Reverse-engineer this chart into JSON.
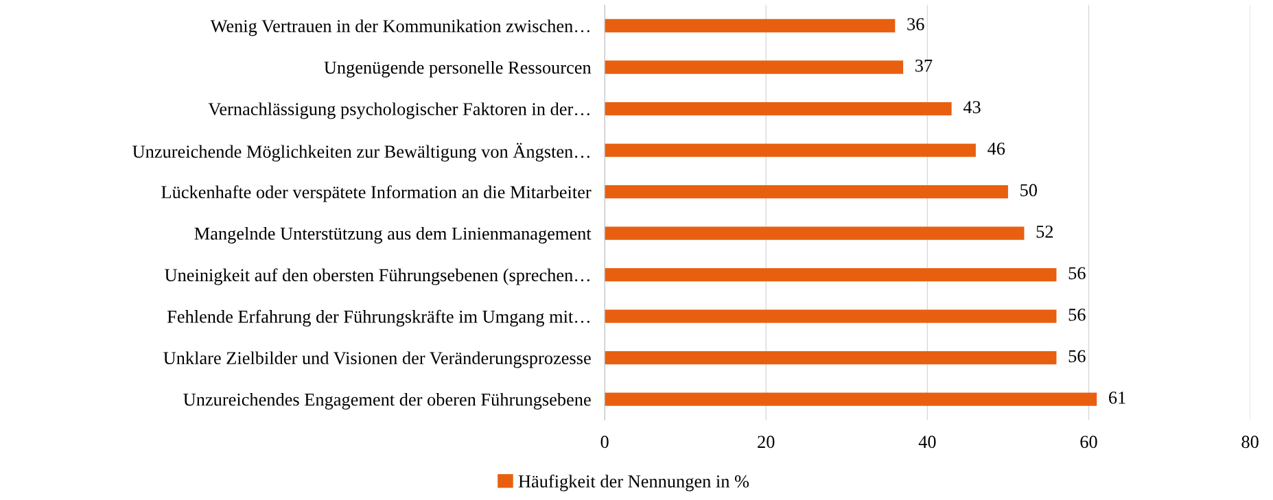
{
  "chart_data": {
    "type": "bar",
    "orientation": "horizontal",
    "categories": [
      "Wenig Vertrauen in der Kommunikation zwischen…",
      "Ungenügende personelle Ressourcen",
      "Vernachlässigung psychologischer Faktoren in der…",
      "Unzureichende Möglichkeiten zur Bewältigung von Ängsten…",
      "Lückenhafte oder verspätete Information an die Mitarbeiter",
      "Mangelnde Unterstützung aus dem Linienmanagement",
      "Uneinigkeit auf den obersten Führungsebenen (sprechen…",
      "Fehlende Erfahrung der Führungskräfte im Umgang mit…",
      "Unklare Zielbilder und Visionen der Veränderungsprozesse",
      "Unzureichendes Engagement der oberen Führungsebene"
    ],
    "series": [
      {
        "name": "Häufigkeit der Nennungen in %",
        "color": "#e8600f",
        "values": [
          36,
          37,
          43,
          46,
          50,
          52,
          56,
          56,
          56,
          61
        ]
      }
    ],
    "xlim": [
      0,
      80
    ],
    "xticks": [
      0,
      20,
      40,
      60,
      80
    ],
    "grid": "x",
    "legend": "bottom",
    "data_labels": true
  }
}
